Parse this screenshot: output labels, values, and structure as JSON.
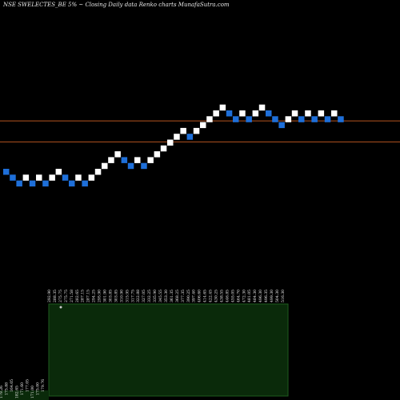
{
  "header": {
    "title": "NSE SWELECTES_BE 5% ~  Closing Daily data  Renko  charts MunafaSutra.com"
  },
  "chart_data": {
    "type": "renko",
    "title": "NSE SWELECTES_BE 5% ~  Closing Daily data  Renko  charts MunafaSutra.com",
    "box_size_percent": 5,
    "colors": {
      "up": "#ffffff",
      "down": "#1e6fd9",
      "hline": "#b5531f",
      "volume_area": "#0a2a0a",
      "volume_border": "#1f5c1f",
      "background": "#000000"
    },
    "bricks": [
      {
        "dir": "down",
        "level": 0
      },
      {
        "dir": "down",
        "level": -1
      },
      {
        "dir": "down",
        "level": -2
      },
      {
        "dir": "up",
        "level": -1
      },
      {
        "dir": "down",
        "level": -2
      },
      {
        "dir": "up",
        "level": -1
      },
      {
        "dir": "down",
        "level": -2
      },
      {
        "dir": "up",
        "level": -1
      },
      {
        "dir": "up",
        "level": 0
      },
      {
        "dir": "down",
        "level": -1
      },
      {
        "dir": "down",
        "level": -2
      },
      {
        "dir": "up",
        "level": -1
      },
      {
        "dir": "down",
        "level": -2
      },
      {
        "dir": "up",
        "level": -1
      },
      {
        "dir": "up",
        "level": 0
      },
      {
        "dir": "up",
        "level": 1
      },
      {
        "dir": "up",
        "level": 2
      },
      {
        "dir": "up",
        "level": 3
      },
      {
        "dir": "down",
        "level": 2
      },
      {
        "dir": "down",
        "level": 1
      },
      {
        "dir": "up",
        "level": 2
      },
      {
        "dir": "down",
        "level": 1
      },
      {
        "dir": "up",
        "level": 2
      },
      {
        "dir": "up",
        "level": 3
      },
      {
        "dir": "up",
        "level": 4
      },
      {
        "dir": "up",
        "level": 5
      },
      {
        "dir": "up",
        "level": 6
      },
      {
        "dir": "up",
        "level": 7
      },
      {
        "dir": "down",
        "level": 6
      },
      {
        "dir": "up",
        "level": 7
      },
      {
        "dir": "up",
        "level": 8
      },
      {
        "dir": "up",
        "level": 9
      },
      {
        "dir": "up",
        "level": 10
      },
      {
        "dir": "up",
        "level": 11
      },
      {
        "dir": "down",
        "level": 10
      },
      {
        "dir": "down",
        "level": 9
      },
      {
        "dir": "up",
        "level": 10
      },
      {
        "dir": "down",
        "level": 9
      },
      {
        "dir": "up",
        "level": 10
      },
      {
        "dir": "up",
        "level": 11
      },
      {
        "dir": "down",
        "level": 10
      },
      {
        "dir": "down",
        "level": 9
      },
      {
        "dir": "down",
        "level": 8
      },
      {
        "dir": "up",
        "level": 9
      },
      {
        "dir": "up",
        "level": 10
      },
      {
        "dir": "down",
        "level": 9
      },
      {
        "dir": "up",
        "level": 10
      },
      {
        "dir": "down",
        "level": 9
      },
      {
        "dir": "up",
        "level": 10
      },
      {
        "dir": "down",
        "level": 9
      },
      {
        "dir": "up",
        "level": 10
      },
      {
        "dir": "down",
        "level": 9
      }
    ],
    "horizontal_lines": [
      8.2,
      4.6
    ],
    "price_labels_high": [
      "292.90",
      "288.35",
      "275.75",
      "275.75",
      "271.58",
      "282.65",
      "287.15",
      "287.15",
      "294.25",
      "295.90",
      "301.90",
      "303.85",
      "303.85",
      "310.90",
      "315.95",
      "317.75",
      "322.88",
      "327.05",
      "332.25",
      "335.90",
      "345.55",
      "353.30",
      "361.35",
      "368.25",
      "377.35",
      "390.25",
      "397.40",
      "406.60",
      "414.65",
      "422.45",
      "430.25",
      "438.55",
      "446.85",
      "455.05",
      "464.70",
      "472.30",
      "481.05",
      "484.30",
      "496.30",
      "496.35",
      "499.30",
      "504.30",
      "516.30"
    ],
    "price_labels_low": [
      "179.26",
      "175.88",
      "164.05",
      "182.65",
      "171.60",
      "177.05",
      "171.00",
      "175.00",
      "179.76"
    ]
  }
}
